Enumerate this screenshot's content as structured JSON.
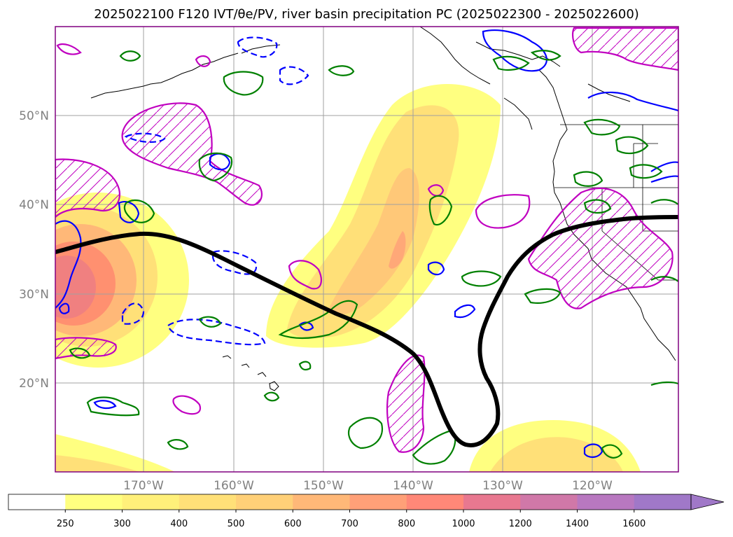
{
  "title": "2025022100 F120 IVT/θe/PV, river basin precipitation PC (2025022300 - 2025022600)",
  "map": {
    "projection": "equirectangular",
    "lon_range": [
      -180,
      -111
    ],
    "lat_range": [
      10,
      60
    ],
    "grid": true,
    "lat_ticks": [
      {
        "value": 20,
        "label": "20°N"
      },
      {
        "value": 30,
        "label": "30°N"
      },
      {
        "value": 40,
        "label": "40°N"
      },
      {
        "value": 50,
        "label": "50°N"
      }
    ],
    "lon_ticks": [
      {
        "value": -170,
        "label": "170°W"
      },
      {
        "value": -160,
        "label": "160°W"
      },
      {
        "value": -150,
        "label": "150°W"
      },
      {
        "value": -140,
        "label": "140°W"
      },
      {
        "value": -130,
        "label": "130°W"
      },
      {
        "value": -120,
        "label": "120°W"
      }
    ],
    "colors": {
      "pv_contour": "#c000c0",
      "theta_e_contour": "#0000ff",
      "precip_contour": "#008000",
      "front_line": "#000000",
      "coastline": "#000000"
    }
  },
  "colorbar": {
    "extend": "max",
    "labels": [
      "250",
      "300",
      "400",
      "500",
      "600",
      "700",
      "800",
      "1000",
      "1200",
      "1400",
      "1600"
    ],
    "colors": [
      "#ffffff",
      "#ffff80",
      "#fff07a",
      "#ffe078",
      "#ffd078",
      "#ffb878",
      "#ffa078",
      "#ff8878",
      "#e87890",
      "#d078a8",
      "#b878c0",
      "#a078c8"
    ]
  }
}
